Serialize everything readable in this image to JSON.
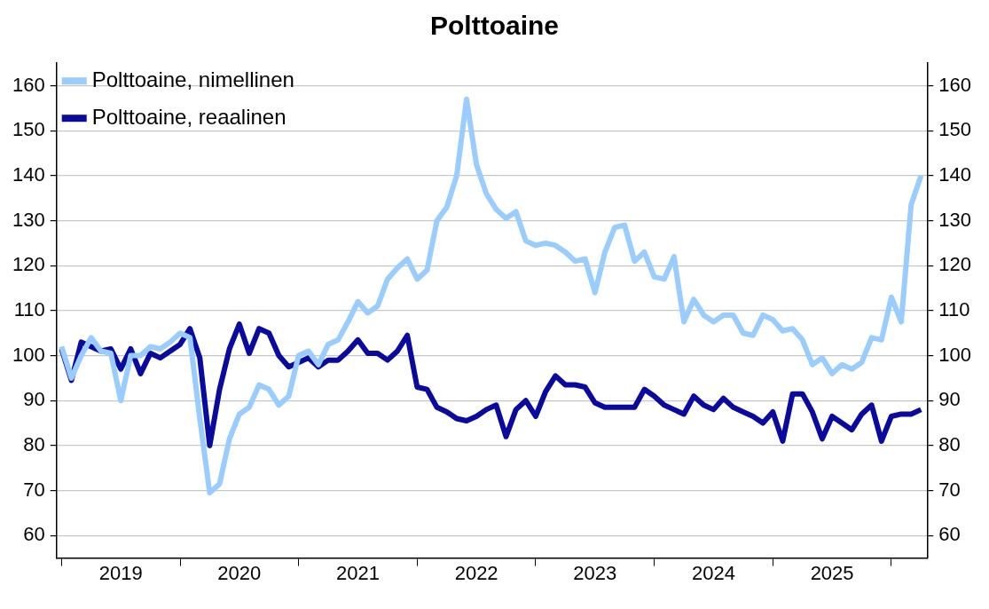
{
  "chart_data": {
    "type": "line",
    "title": "Polttoaine",
    "x": [
      "2019-01",
      "2019-02",
      "2019-03",
      "2019-04",
      "2019-05",
      "2019-06",
      "2019-07",
      "2019-08",
      "2019-09",
      "2019-10",
      "2019-11",
      "2019-12",
      "2020-01",
      "2020-02",
      "2020-03",
      "2020-04",
      "2020-05",
      "2020-06",
      "2020-07",
      "2020-08",
      "2020-09",
      "2020-10",
      "2020-11",
      "2020-12",
      "2021-01",
      "2021-02",
      "2021-03",
      "2021-04",
      "2021-05",
      "2021-06",
      "2021-07",
      "2021-08",
      "2021-09",
      "2021-10",
      "2021-11",
      "2021-12",
      "2022-01",
      "2022-02",
      "2022-03",
      "2022-04",
      "2022-05",
      "2022-06",
      "2022-07",
      "2022-08",
      "2022-09",
      "2022-10",
      "2022-11",
      "2022-12",
      "2023-01",
      "2023-02",
      "2023-03",
      "2023-04",
      "2023-05",
      "2023-06",
      "2023-07",
      "2023-08",
      "2023-09",
      "2023-10",
      "2023-11",
      "2023-12",
      "2024-01",
      "2024-02",
      "2024-03",
      "2024-04",
      "2024-05",
      "2024-06",
      "2024-07",
      "2024-08",
      "2024-09",
      "2024-10",
      "2024-11",
      "2024-12",
      "2025-01",
      "2025-02",
      "2025-03",
      "2025-04",
      "2025-05",
      "2025-06",
      "2025-07",
      "2025-08",
      "2025-09",
      "2025-10",
      "2025-11",
      "2025-12",
      "2026-01",
      "2026-02",
      "2026-03",
      "2026-04"
    ],
    "series": [
      {
        "name": "Polttoaine, nimellinen",
        "color": "#99ccff",
        "values": [
          102,
          95,
          100,
          104,
          101,
          100.5,
          90,
          100,
          100,
          102,
          101.5,
          103,
          105,
          104,
          86,
          69.5,
          71.5,
          81.5,
          87,
          88.5,
          93.5,
          92.5,
          89,
          91,
          100,
          101,
          98,
          102.5,
          103.5,
          107.5,
          112,
          109.5,
          111,
          117,
          119.5,
          121.5,
          117,
          119,
          130,
          133,
          140,
          157,
          142.5,
          136,
          132.5,
          130.5,
          132,
          125.5,
          124.5,
          125,
          124.5,
          123,
          121,
          121.5,
          114,
          123,
          128.5,
          129,
          121,
          123,
          117.5,
          117,
          122,
          107.5,
          112.5,
          109,
          107.5,
          109,
          109,
          105,
          104.5,
          109,
          108,
          105.5,
          106,
          103.5,
          98,
          99.5,
          96,
          98,
          97,
          98.5,
          104,
          103.5,
          113,
          107.5,
          133.5,
          140
        ]
      },
      {
        "name": "Polttoaine, reaalinen",
        "color": "#0a0a9e",
        "values": [
          101.5,
          94.5,
          103,
          102,
          101,
          101.5,
          97,
          101.5,
          96,
          100.5,
          99.5,
          101,
          102.5,
          106,
          99.5,
          80,
          92.5,
          101.5,
          107,
          100.5,
          106,
          105,
          100,
          97.5,
          98.5,
          99.5,
          97.5,
          99,
          99,
          101,
          103.5,
          100.5,
          100.5,
          99,
          101,
          104.5,
          93,
          92.5,
          88.5,
          87.5,
          86,
          85.5,
          86.5,
          88,
          89,
          82,
          88,
          90,
          86.5,
          92,
          95.5,
          93.5,
          93.5,
          93,
          89.5,
          88.5,
          88.5,
          88.5,
          88.5,
          92.5,
          91,
          89,
          88,
          87,
          91,
          89,
          88,
          90.5,
          88.5,
          87.5,
          86.5,
          85,
          87.5,
          81,
          91.5,
          91.5,
          87.5,
          81.5,
          86.5,
          85,
          83.5,
          87,
          89,
          81,
          86.5,
          87,
          87,
          88
        ]
      }
    ],
    "xlim": [
      "2018-12-16",
      "2026-04-20"
    ],
    "xticks": [
      {
        "value": "2019-01",
        "label": null
      },
      {
        "value": "2019-07",
        "label": "2019"
      },
      {
        "value": "2020-01",
        "label": null
      },
      {
        "value": "2020-07",
        "label": "2020"
      },
      {
        "value": "2021-01",
        "label": null
      },
      {
        "value": "2021-07",
        "label": "2021"
      },
      {
        "value": "2022-01",
        "label": null
      },
      {
        "value": "2022-07",
        "label": "2022"
      },
      {
        "value": "2023-01",
        "label": null
      },
      {
        "value": "2023-07",
        "label": "2023"
      },
      {
        "value": "2024-01",
        "label": null
      },
      {
        "value": "2024-07",
        "label": "2024"
      },
      {
        "value": "2025-01",
        "label": null
      },
      {
        "value": "2025-07",
        "label": "2025"
      },
      {
        "value": "2026-01",
        "label": null
      }
    ],
    "ylim": [
      55,
      165
    ],
    "yticks": [
      60,
      70,
      80,
      90,
      100,
      110,
      120,
      130,
      140,
      150,
      160
    ],
    "y2lim": [
      55,
      165
    ],
    "y2ticks": [
      60,
      70,
      80,
      90,
      100,
      110,
      120,
      130,
      140,
      150,
      160
    ],
    "grid": "y",
    "legend": "top left",
    "marker": "none",
    "line_style": "solid"
  }
}
